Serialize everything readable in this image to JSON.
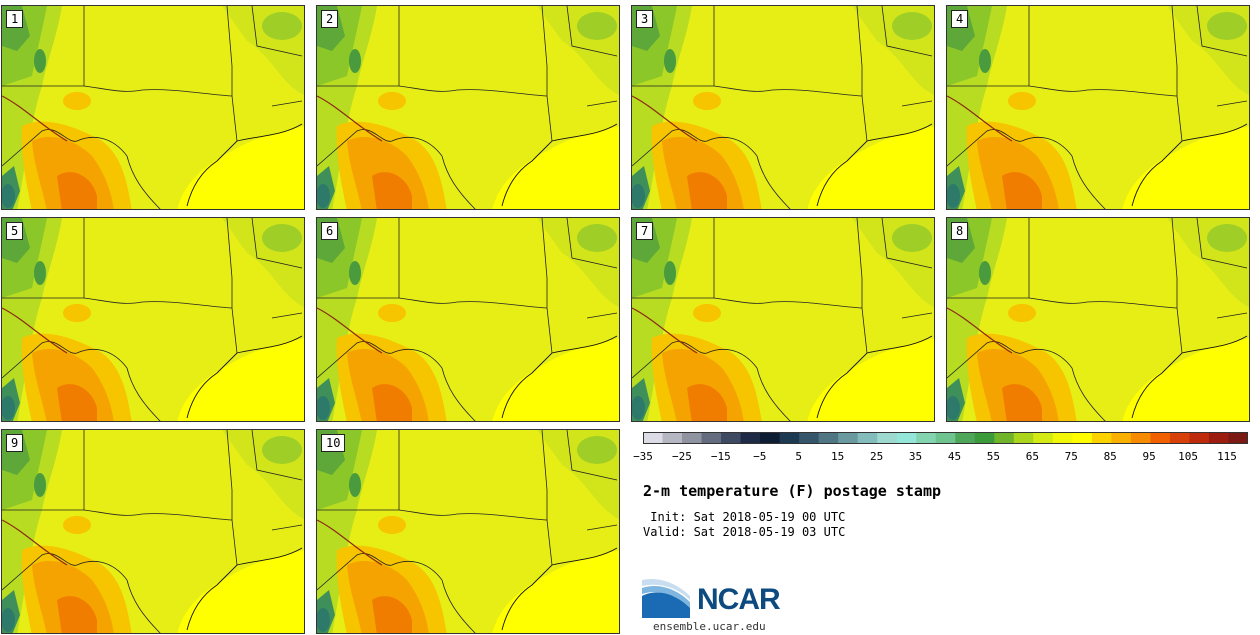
{
  "members": [
    "1",
    "2",
    "3",
    "4",
    "5",
    "6",
    "7",
    "8",
    "9",
    "10"
  ],
  "legend": {
    "tick_labels": [
      "−35",
      "−25",
      "−15",
      "−5",
      "5",
      "15",
      "25",
      "35",
      "45",
      "55",
      "65",
      "75",
      "85",
      "95",
      "105",
      "115"
    ],
    "colors": [
      "#dcdce6",
      "#b5b8c2",
      "#8f94a0",
      "#646d7f",
      "#3d4a62",
      "#1e2a46",
      "#0d1d33",
      "#1e3a52",
      "#34556a",
      "#4f7682",
      "#6a9aa0",
      "#83bcbb",
      "#9dd9cf",
      "#93e6d8",
      "#85d4b0",
      "#6fc38e",
      "#4ea65a",
      "#3b9a3a",
      "#6fb42b",
      "#abd41d",
      "#d4ea14",
      "#f1f707",
      "#fffd00",
      "#fbd200",
      "#f9b000",
      "#f68a00",
      "#f06000",
      "#d8400a",
      "#be2a0c",
      "#9c1d10",
      "#7a1a12"
    ]
  },
  "title": "2-m temperature (F) postage stamp",
  "init": " Init: Sat 2018-05-19 00 UTC",
  "valid": "Valid: Sat 2018-05-19 03 UTC",
  "logo": {
    "name": "NCAR",
    "url": "ensemble.ucar.edu"
  }
}
